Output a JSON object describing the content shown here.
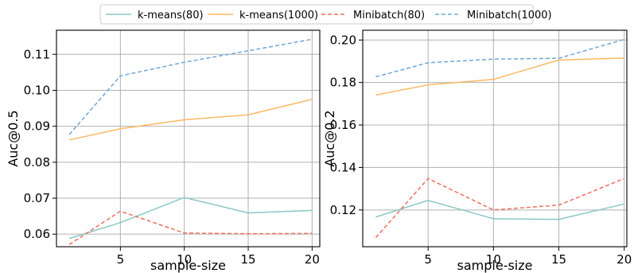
{
  "colors": {
    "kmeans80": "#88c9c5",
    "kmeans1000": "#fdb863",
    "minibatch80": "#ef6f5f",
    "minibatch1000": "#6fa6d6",
    "grid": "#b0b0b0"
  },
  "legend": [
    {
      "name": "k-means(80)",
      "color_key": "kmeans80",
      "dashed": false
    },
    {
      "name": "k-means(1000)",
      "color_key": "kmeans1000",
      "dashed": false
    },
    {
      "name": "Minibatch(80)",
      "color_key": "minibatch80",
      "dashed": true
    },
    {
      "name": "Minibatch(1000)",
      "color_key": "minibatch1000",
      "dashed": true
    }
  ],
  "chart_data": [
    {
      "type": "line",
      "xlabel": "sample-size",
      "ylabel": "Auc@0.5",
      "xlim": [
        0,
        20.6
      ],
      "ylim": [
        0.0565,
        0.1167
      ],
      "xticks": [
        5,
        10,
        15,
        20
      ],
      "yticks": [
        0.06,
        0.07,
        0.08,
        0.09,
        0.1,
        0.11
      ],
      "ytick_labels": [
        "0.06",
        "0.07",
        "0.08",
        "0.09",
        "0.10",
        "0.11"
      ],
      "grid": true,
      "x": [
        1,
        5,
        10,
        15,
        20
      ],
      "series": [
        {
          "name": "k-means(80)",
          "values": [
            0.0588,
            0.0632,
            0.0702,
            0.0659,
            0.0666
          ]
        },
        {
          "name": "k-means(1000)",
          "values": [
            0.0862,
            0.0893,
            0.0918,
            0.0932,
            0.0975
          ]
        },
        {
          "name": "Minibatch(80)",
          "values": [
            0.0571,
            0.0664,
            0.0603,
            0.0601,
            0.0602
          ]
        },
        {
          "name": "Minibatch(1000)",
          "values": [
            0.0877,
            0.104,
            0.1078,
            0.111,
            0.1142
          ]
        }
      ]
    },
    {
      "type": "line",
      "xlabel": "sample-size",
      "ylabel": "Auc@0.2",
      "xlim": [
        0,
        20.2
      ],
      "ylim": [
        0.1027,
        0.2046
      ],
      "xticks": [
        5,
        10,
        15,
        20
      ],
      "yticks": [
        0.12,
        0.14,
        0.16,
        0.18,
        0.2
      ],
      "ytick_labels": [
        "0.12",
        "0.14",
        "0.16",
        "0.18",
        "0.20"
      ],
      "grid": true,
      "x": [
        1,
        5,
        10,
        15,
        20
      ],
      "series": [
        {
          "name": "k-means(80)",
          "values": [
            0.1167,
            0.1245,
            0.1159,
            0.1156,
            0.1228
          ]
        },
        {
          "name": "k-means(1000)",
          "values": [
            0.1741,
            0.1789,
            0.1815,
            0.1906,
            0.1915
          ]
        },
        {
          "name": "Minibatch(80)",
          "values": [
            0.107,
            0.1348,
            0.12,
            0.1223,
            0.1348
          ]
        },
        {
          "name": "Minibatch(1000)",
          "values": [
            0.1827,
            0.1893,
            0.191,
            0.1914,
            0.2003
          ]
        }
      ]
    }
  ]
}
